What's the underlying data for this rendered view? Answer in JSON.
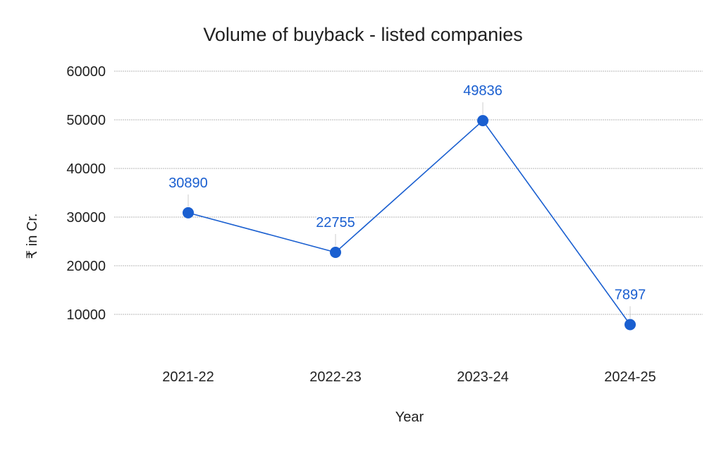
{
  "chart_data": {
    "type": "line",
    "title": "Volume of buyback - listed companies",
    "xlabel": "Year",
    "ylabel": "₹ in Cr.",
    "categories": [
      "2021-22",
      "2022-23",
      "2023-24",
      "2024-25"
    ],
    "series": [
      {
        "values": [
          30890,
          22755,
          49836,
          7897
        ]
      }
    ],
    "data_labels": [
      "30890",
      "22755",
      "49836",
      "7897"
    ],
    "ylim": [
      0,
      60000
    ],
    "yticks": [
      10000,
      20000,
      30000,
      40000,
      50000,
      60000
    ],
    "ytick_labels": [
      "10000",
      "20000",
      "30000",
      "40000",
      "50000",
      "60000"
    ],
    "grid": true,
    "legend": "none",
    "colors": {
      "series": "#1a5fd0",
      "grid": "#b7b7b7"
    }
  }
}
